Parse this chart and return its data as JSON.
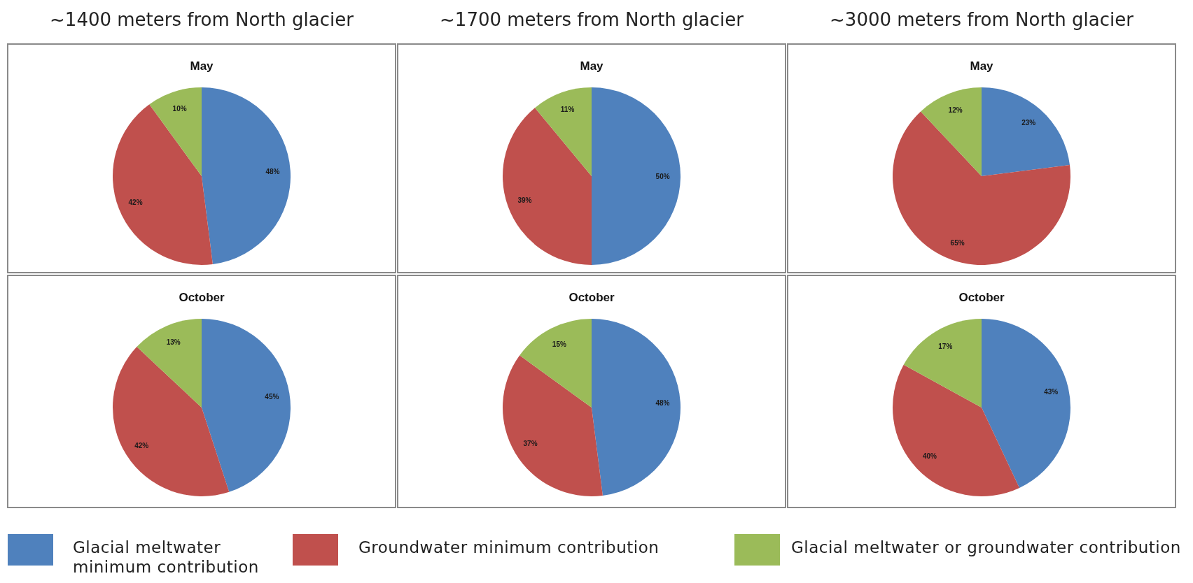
{
  "chart_data": [
    {
      "type": "pie",
      "title": "~1400 meters from North glacier",
      "subtitle": "May",
      "categories": [
        "Glacial meltwater minimum contribution",
        "Groundwater minimum contribution",
        "Glacial meltwater or groundwater contribution"
      ],
      "values": [
        48,
        42,
        10
      ],
      "colors": [
        "#4f81bd",
        "#c0504d",
        "#9bbb59"
      ],
      "value_labels": [
        "48%",
        "42%",
        "10%"
      ],
      "legend": "bottom"
    },
    {
      "type": "pie",
      "title": "~1700 meters from North glacier",
      "subtitle": "May",
      "categories": [
        null,
        null,
        null
      ],
      "values": [
        50,
        39,
        11
      ],
      "colors": [
        "#4f81bd",
        "#c0504d",
        "#9bbb59"
      ],
      "value_labels": [
        "50%",
        "39%",
        "11%"
      ]
    },
    {
      "type": "pie",
      "title": "~3000 meters from North glacier",
      "subtitle": "May",
      "categories": [
        null,
        null,
        null
      ],
      "values": [
        23,
        65,
        12
      ],
      "colors": [
        "#4f81bd",
        "#c0504d",
        "#9bbb59"
      ],
      "value_labels": [
        "23%",
        "65%",
        "12%"
      ]
    },
    {
      "type": "pie",
      "title": "October",
      "categories": [
        null,
        null,
        null
      ],
      "values": [
        45,
        42,
        13
      ],
      "colors": [
        "#4f81bd",
        "#c0504d",
        "#9bbb59"
      ],
      "value_labels": [
        "45%",
        "42%",
        "13%"
      ]
    },
    {
      "type": "pie",
      "title": "October",
      "categories": [
        null,
        null,
        null
      ],
      "values": [
        48,
        37,
        15
      ],
      "colors": [
        "#4f81bd",
        "#c0504d",
        "#9bbb59"
      ],
      "value_labels": [
        "48%",
        "37%",
        "15%"
      ]
    },
    {
      "type": "pie",
      "title": "October",
      "categories": [
        null,
        null,
        null
      ],
      "values": [
        43,
        40,
        17
      ],
      "colors": [
        "#4f81bd",
        "#c0504d",
        "#9bbb59"
      ],
      "value_labels": [
        "43%",
        "40%",
        "17%"
      ]
    }
  ]
}
